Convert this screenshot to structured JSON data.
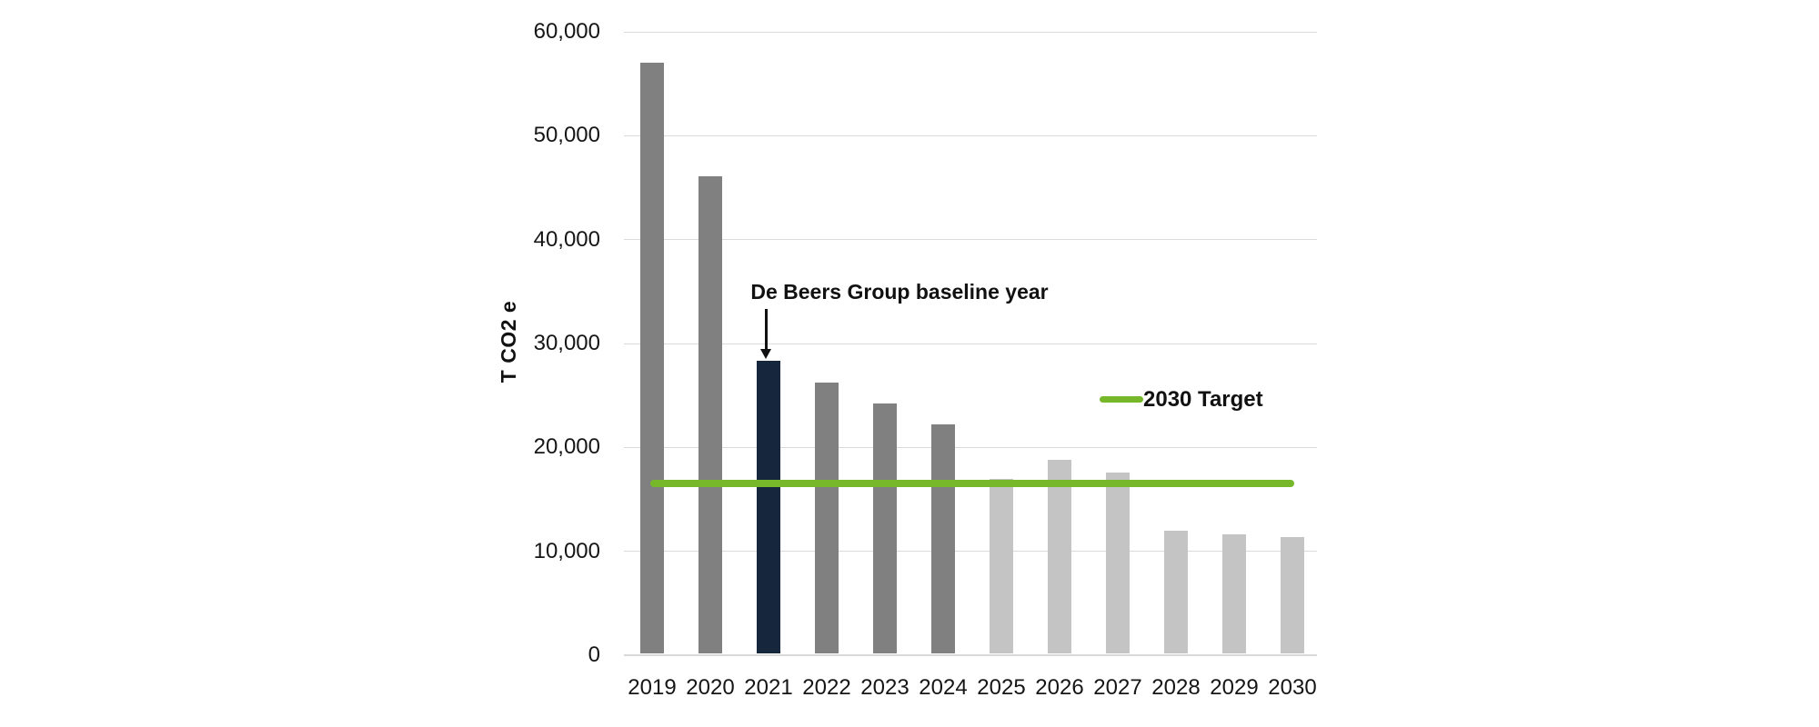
{
  "chart_data": {
    "type": "bar",
    "title": "",
    "ylabel": "T CO2 e",
    "xlabel": "",
    "categories": [
      "2019",
      "2020",
      "2021",
      "2022",
      "2023",
      "2024",
      "2025",
      "2026",
      "2027",
      "2028",
      "2029",
      "2030"
    ],
    "values": [
      57000,
      46100,
      28300,
      26200,
      24200,
      22200,
      17000,
      18800,
      17600,
      12000,
      11600,
      11400
    ],
    "bar_groups": [
      "actual",
      "actual",
      "baseline",
      "actual",
      "actual",
      "actual",
      "projected",
      "projected",
      "projected",
      "projected",
      "projected",
      "projected"
    ],
    "ylim": [
      0,
      60000
    ],
    "yticks": [
      {
        "value": 60000,
        "label": "60,000"
      },
      {
        "value": 50000,
        "label": "50,000"
      },
      {
        "value": 40000,
        "label": "40,000"
      },
      {
        "value": 30000,
        "label": "30,000"
      },
      {
        "value": 20000,
        "label": "20,000"
      },
      {
        "value": 10000,
        "label": "10,000"
      },
      {
        "value": 0,
        "label": "0"
      }
    ],
    "grid": "horizontal",
    "legend": {
      "label": "2030 Target",
      "position": "right-middle"
    },
    "target_line": {
      "value": 16500,
      "from_category": "2019",
      "to_category": "2030"
    },
    "annotation": {
      "text": "De Beers Group baseline year",
      "points_to_category": "2021"
    },
    "colors": {
      "actual_bar": "#808080",
      "baseline_bar": "#16263C",
      "projected_bar": "#C4C4C5",
      "target_line": "#76B82A",
      "gridline": "#DBDBDB",
      "axis_line": "#D9D9D9",
      "text": "#111111"
    }
  }
}
